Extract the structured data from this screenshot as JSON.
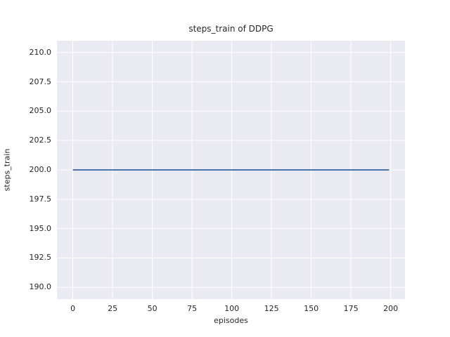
{
  "chart_data": {
    "type": "line",
    "title": "steps_train of DDPG",
    "xlabel": "episodes",
    "ylabel": "steps_train",
    "xlim": [
      -10,
      209
    ],
    "ylim": [
      189,
      211
    ],
    "x_ticks": [
      0,
      25,
      50,
      75,
      100,
      125,
      150,
      175,
      200
    ],
    "x_tick_labels": [
      "0",
      "25",
      "50",
      "75",
      "100",
      "125",
      "150",
      "175",
      "200"
    ],
    "y_ticks": [
      190.0,
      192.5,
      195.0,
      197.5,
      200.0,
      202.5,
      205.0,
      207.5,
      210.0
    ],
    "y_tick_labels": [
      "190.0",
      "192.5",
      "195.0",
      "197.5",
      "200.0",
      "202.5",
      "205.0",
      "207.5",
      "210.0"
    ],
    "grid": true,
    "legend": "none",
    "plot_background_color": "#eaeaf2",
    "grid_color": "#ffffff",
    "text_color": "#262626",
    "series": [
      {
        "name": "steps_train",
        "color": "#4c72b0",
        "line_width": 2,
        "x": [
          0,
          199
        ],
        "y": [
          200,
          200
        ],
        "note": "constant value 200 for all episodes 0-199"
      }
    ]
  }
}
